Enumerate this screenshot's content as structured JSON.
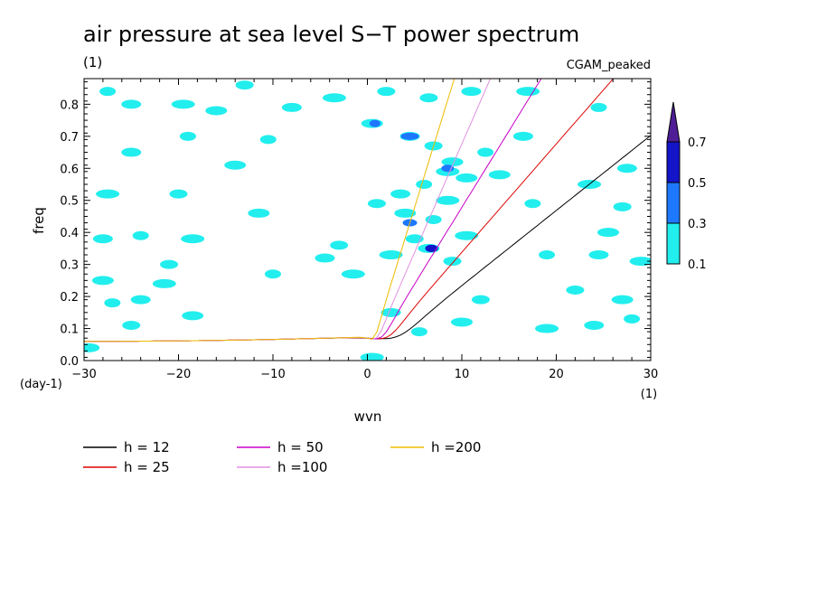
{
  "chart_data": {
    "type": "heatmap",
    "title": "air pressure at sea level S−T power spectrum",
    "title_unit": "(1)",
    "subtitle": "CGAM_peaked",
    "xlabel": "wvn",
    "ylabel": "freq",
    "x_unit": "(1)",
    "y_unit": "(day-1)",
    "xlim": [
      -30,
      30
    ],
    "ylim": [
      0,
      0.88
    ],
    "x_ticks": [
      -30,
      -20,
      -10,
      0,
      10,
      20,
      30
    ],
    "x_tick_labels": [
      "−30",
      "−20",
      "−10",
      "0",
      "10",
      "20",
      "30"
    ],
    "y_ticks": [
      0,
      0.1,
      0.2,
      0.3,
      0.4,
      0.5,
      0.6,
      0.7,
      0.8
    ],
    "y_tick_labels": [
      "0.0",
      "0.1",
      "0.2",
      "0.3",
      "0.4",
      "0.5",
      "0.6",
      "0.7",
      "0.8"
    ],
    "colorbar": {
      "levels": [
        0.1,
        0.3,
        0.5,
        0.7
      ],
      "level_labels": [
        "0.1",
        "0.3",
        "0.5",
        "0.7"
      ],
      "colors": [
        "#22eeee",
        "#1e78ff",
        "#1414c8",
        "#4f1e96"
      ]
    },
    "series": [
      {
        "name": "h = 12",
        "color": "#000000",
        "h": 12
      },
      {
        "name": "h = 25",
        "color": "#dd0000",
        "h": 25
      },
      {
        "name": "h = 50",
        "color": "#c800c8",
        "h": 50
      },
      {
        "name": "h =100",
        "color": "#e090e0",
        "h": 100
      },
      {
        "name": "h =200",
        "color": "#eebb00",
        "h": 200
      }
    ],
    "contour_patches": [
      {
        "x": -27.5,
        "y": 0.84,
        "level": 0.1
      },
      {
        "x": -25,
        "y": 0.8,
        "level": 0.1
      },
      {
        "x": -19.5,
        "y": 0.8,
        "level": 0.1
      },
      {
        "x": -13,
        "y": 0.86,
        "level": 0.1
      },
      {
        "x": -16,
        "y": 0.78,
        "level": 0.1
      },
      {
        "x": -10.5,
        "y": 0.69,
        "level": 0.1
      },
      {
        "x": -8,
        "y": 0.79,
        "level": 0.1
      },
      {
        "x": -3.5,
        "y": 0.82,
        "level": 0.1
      },
      {
        "x": 2,
        "y": 0.84,
        "level": 0.1
      },
      {
        "x": -14,
        "y": 0.61,
        "level": 0.1
      },
      {
        "x": -19,
        "y": 0.7,
        "level": 0.1
      },
      {
        "x": -25,
        "y": 0.65,
        "level": 0.1
      },
      {
        "x": -27.5,
        "y": 0.52,
        "level": 0.1
      },
      {
        "x": -20,
        "y": 0.52,
        "level": 0.1
      },
      {
        "x": -11.5,
        "y": 0.46,
        "level": 0.1
      },
      {
        "x": -24,
        "y": 0.39,
        "level": 0.1
      },
      {
        "x": -28,
        "y": 0.38,
        "level": 0.1
      },
      {
        "x": -18.5,
        "y": 0.38,
        "level": 0.1
      },
      {
        "x": -21,
        "y": 0.3,
        "level": 0.1
      },
      {
        "x": -28,
        "y": 0.25,
        "level": 0.1
      },
      {
        "x": -27,
        "y": 0.18,
        "level": 0.1
      },
      {
        "x": -24,
        "y": 0.19,
        "level": 0.1
      },
      {
        "x": -21.5,
        "y": 0.24,
        "level": 0.1
      },
      {
        "x": -25,
        "y": 0.11,
        "level": 0.1
      },
      {
        "x": -18.5,
        "y": 0.14,
        "level": 0.1
      },
      {
        "x": -10,
        "y": 0.27,
        "level": 0.1
      },
      {
        "x": -4.5,
        "y": 0.32,
        "level": 0.1
      },
      {
        "x": -1.5,
        "y": 0.27,
        "level": 0.1
      },
      {
        "x": -3,
        "y": 0.36,
        "level": 0.1
      },
      {
        "x": 0.5,
        "y": 0.74,
        "level": 0.1
      },
      {
        "x": 0.8,
        "y": 0.74,
        "level": 0.3
      },
      {
        "x": 4.5,
        "y": 0.7,
        "level": 0.1
      },
      {
        "x": 4.5,
        "y": 0.7,
        "level": 0.3
      },
      {
        "x": 7,
        "y": 0.67,
        "level": 0.1
      },
      {
        "x": 9,
        "y": 0.62,
        "level": 0.1
      },
      {
        "x": 12.5,
        "y": 0.65,
        "level": 0.1
      },
      {
        "x": 16.5,
        "y": 0.7,
        "level": 0.1
      },
      {
        "x": 8.5,
        "y": 0.59,
        "level": 0.1
      },
      {
        "x": 8.5,
        "y": 0.6,
        "level": 0.3
      },
      {
        "x": 10.5,
        "y": 0.57,
        "level": 0.1
      },
      {
        "x": 6,
        "y": 0.55,
        "level": 0.1
      },
      {
        "x": 3.5,
        "y": 0.52,
        "level": 0.1
      },
      {
        "x": 8.5,
        "y": 0.5,
        "level": 0.1
      },
      {
        "x": 1,
        "y": 0.49,
        "level": 0.1
      },
      {
        "x": 4,
        "y": 0.46,
        "level": 0.1
      },
      {
        "x": 7,
        "y": 0.44,
        "level": 0.1
      },
      {
        "x": 4.5,
        "y": 0.43,
        "level": 0.3
      },
      {
        "x": 10.5,
        "y": 0.39,
        "level": 0.1
      },
      {
        "x": 5,
        "y": 0.38,
        "level": 0.1
      },
      {
        "x": 6.5,
        "y": 0.35,
        "level": 0.1
      },
      {
        "x": 6.7,
        "y": 0.35,
        "level": 0.3
      },
      {
        "x": 6.8,
        "y": 0.35,
        "level": 0.5
      },
      {
        "x": 2.5,
        "y": 0.33,
        "level": 0.1
      },
      {
        "x": 9,
        "y": 0.31,
        "level": 0.1
      },
      {
        "x": 14,
        "y": 0.58,
        "level": 0.1
      },
      {
        "x": 17.5,
        "y": 0.49,
        "level": 0.1
      },
      {
        "x": 27.5,
        "y": 0.6,
        "level": 0.1
      },
      {
        "x": 23.5,
        "y": 0.55,
        "level": 0.1
      },
      {
        "x": 27,
        "y": 0.48,
        "level": 0.1
      },
      {
        "x": 25.5,
        "y": 0.4,
        "level": 0.1
      },
      {
        "x": 19,
        "y": 0.33,
        "level": 0.1
      },
      {
        "x": 24.5,
        "y": 0.33,
        "level": 0.1
      },
      {
        "x": 29,
        "y": 0.31,
        "level": 0.1
      },
      {
        "x": 22,
        "y": 0.22,
        "level": 0.1
      },
      {
        "x": 27,
        "y": 0.19,
        "level": 0.1
      },
      {
        "x": 28,
        "y": 0.13,
        "level": 0.1
      },
      {
        "x": 24,
        "y": 0.11,
        "level": 0.1
      },
      {
        "x": 19,
        "y": 0.1,
        "level": 0.1
      },
      {
        "x": 12,
        "y": 0.19,
        "level": 0.1
      },
      {
        "x": 10,
        "y": 0.12,
        "level": 0.1
      },
      {
        "x": 5.5,
        "y": 0.09,
        "level": 0.1
      },
      {
        "x": 2.5,
        "y": 0.15,
        "level": 0.1
      },
      {
        "x": 0.5,
        "y": 0.01,
        "level": 0.1
      },
      {
        "x": 6.5,
        "y": 0.82,
        "level": 0.1
      },
      {
        "x": -29.5,
        "y": 0.04,
        "level": 0.1
      },
      {
        "x": 24.5,
        "y": 0.79,
        "level": 0.1
      },
      {
        "x": 11,
        "y": 0.84,
        "level": 0.1
      },
      {
        "x": 17,
        "y": 0.84,
        "level": 0.1
      }
    ]
  }
}
